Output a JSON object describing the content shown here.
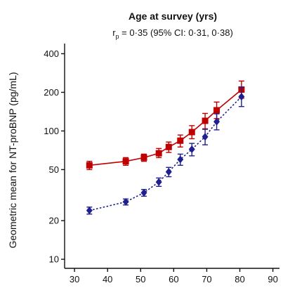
{
  "chart_data": {
    "type": "line",
    "title": "Age at survey (yrs)",
    "subtitle": {
      "prefix": "r",
      "subscript": "p",
      "rest": " = 0·35 (95% CI: 0·31, 0·38)"
    },
    "ylabel": "Geometric mean for NT-proBNP (pg/mL)",
    "xlabel": "",
    "xlim": [
      27,
      92
    ],
    "ylim": [
      8.5,
      480
    ],
    "y_scale": "log",
    "x_ticks": [
      30,
      40,
      50,
      60,
      70,
      80,
      90
    ],
    "y_ticks": [
      10,
      20,
      50,
      100,
      200,
      400
    ],
    "grid": false,
    "series": [
      {
        "color": "#c00000",
        "marker": "square",
        "line_style": "solid",
        "points": [
          {
            "x": 34.5,
            "y": 54,
            "lo": 50,
            "hi": 58
          },
          {
            "x": 45.5,
            "y": 58,
            "lo": 54,
            "hi": 62
          },
          {
            "x": 51,
            "y": 62,
            "lo": 58,
            "hi": 66
          },
          {
            "x": 55.5,
            "y": 67,
            "lo": 62,
            "hi": 73
          },
          {
            "x": 58.5,
            "y": 75,
            "lo": 68,
            "hi": 82
          },
          {
            "x": 62,
            "y": 84,
            "lo": 75,
            "hi": 93
          },
          {
            "x": 65.5,
            "y": 98,
            "lo": 87,
            "hi": 110
          },
          {
            "x": 69.5,
            "y": 120,
            "lo": 104,
            "hi": 137
          },
          {
            "x": 73,
            "y": 145,
            "lo": 125,
            "hi": 168
          },
          {
            "x": 80.5,
            "y": 210,
            "lo": 180,
            "hi": 245
          }
        ]
      },
      {
        "color": "#1f1f8f",
        "marker": "diamond",
        "line_style": "dotted",
        "points": [
          {
            "x": 34.5,
            "y": 24,
            "lo": 22.5,
            "hi": 25.5
          },
          {
            "x": 45.5,
            "y": 28,
            "lo": 26.5,
            "hi": 29.5
          },
          {
            "x": 51,
            "y": 33,
            "lo": 31,
            "hi": 35
          },
          {
            "x": 55.5,
            "y": 40,
            "lo": 37,
            "hi": 43
          },
          {
            "x": 58.5,
            "y": 48,
            "lo": 44,
            "hi": 52
          },
          {
            "x": 62,
            "y": 60,
            "lo": 54,
            "hi": 66
          },
          {
            "x": 65.5,
            "y": 72,
            "lo": 64,
            "hi": 80
          },
          {
            "x": 69.5,
            "y": 90,
            "lo": 78,
            "hi": 103
          },
          {
            "x": 73,
            "y": 118,
            "lo": 102,
            "hi": 136
          },
          {
            "x": 80.5,
            "y": 185,
            "lo": 155,
            "hi": 220
          }
        ]
      }
    ]
  }
}
